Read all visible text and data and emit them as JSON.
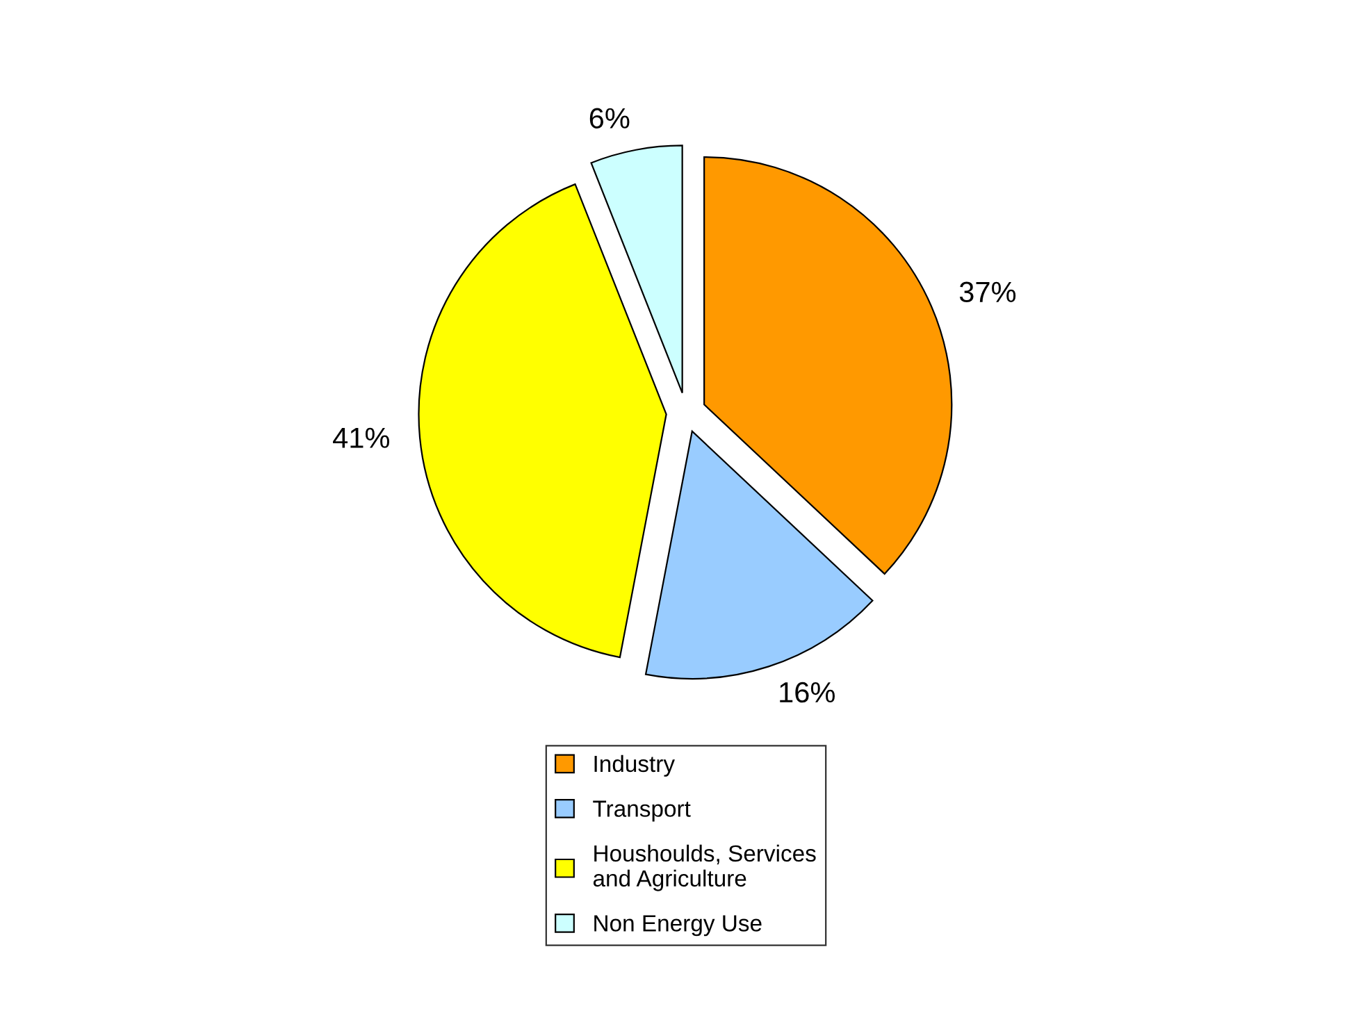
{
  "chart_data": {
    "type": "pie",
    "categories": [
      "Industry",
      "Transport",
      "Houshoulds, Services\nand Agriculture",
      "Non Energy Use"
    ],
    "values": [
      37,
      16,
      41,
      6
    ],
    "colors": [
      "#ff9900",
      "#99ccff",
      "#ffff00",
      "#ccffff"
    ],
    "value_labels": [
      "37%",
      "16%",
      "41%",
      "6%"
    ],
    "legend": "bottom"
  }
}
